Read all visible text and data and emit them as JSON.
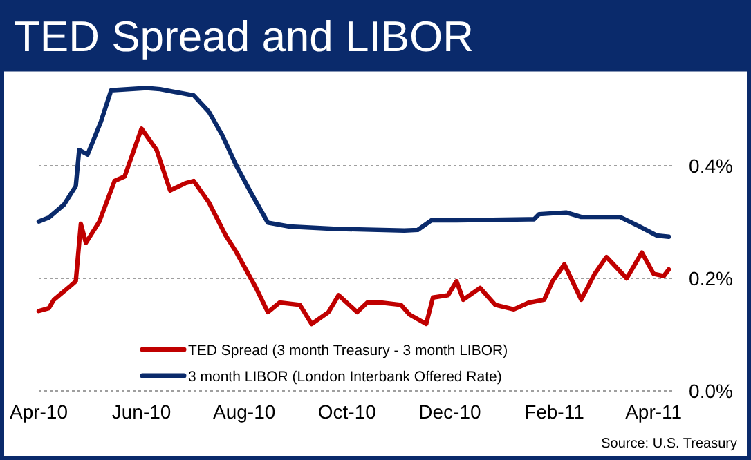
{
  "chart_data": {
    "type": "line",
    "title": "TED Spread and LIBOR",
    "xlim": [
      "2010-04-01",
      "2011-04-12"
    ],
    "xticks": [
      {
        "value": "2010-04-01",
        "label": "Apr-10"
      },
      {
        "value": "2010-06-01",
        "label": "Jun-10"
      },
      {
        "value": "2010-08-01",
        "label": "Aug-10"
      },
      {
        "value": "2010-10-01",
        "label": "Oct-10"
      },
      {
        "value": "2010-12-01",
        "label": "Dec-10"
      },
      {
        "value": "2011-02-01",
        "label": "Feb-11"
      },
      {
        "value": "2011-04-01",
        "label": "Apr-11"
      }
    ],
    "ylim": [
      0,
      0.57
    ],
    "yticks": [
      {
        "value": 0,
        "label": "0.0%"
      },
      {
        "value": 0.2,
        "label": "0.2%"
      },
      {
        "value": 0.4,
        "label": "0.4%"
      }
    ],
    "grid": "y",
    "legend": "bottom left",
    "marker": "none",
    "line_style": "solid",
    "annotations": [
      "Source: U.S. Treasury"
    ],
    "series": [
      {
        "name": "TED Spread (3 month Treasury - 3 month LIBOR)",
        "color": "#c00000",
        "x": [
          "2010-04-01",
          "2010-04-07",
          "2010-04-10",
          "2010-04-20",
          "2010-04-23",
          "2010-04-26",
          "2010-04-29",
          "2010-05-07",
          "2010-05-16",
          "2010-05-22",
          "2010-06-01",
          "2010-06-10",
          "2010-06-18",
          "2010-06-27",
          "2010-07-02",
          "2010-07-11",
          "2010-07-21",
          "2010-07-27",
          "2010-08-08",
          "2010-08-15",
          "2010-08-22",
          "2010-09-03",
          "2010-09-10",
          "2010-09-20",
          "2010-09-26",
          "2010-10-07",
          "2010-10-13",
          "2010-10-21",
          "2010-11-02",
          "2010-11-07",
          "2010-11-17",
          "2010-11-21",
          "2010-11-30",
          "2010-12-05",
          "2010-12-09",
          "2010-12-19",
          "2010-12-28",
          "2011-01-08",
          "2011-01-17",
          "2011-01-26",
          "2011-01-31",
          "2011-02-07",
          "2011-02-17",
          "2011-02-25",
          "2011-03-04",
          "2011-03-11",
          "2011-03-16",
          "2011-03-25",
          "2011-04-01",
          "2011-04-07",
          "2011-04-10"
        ],
        "values": [
          0.142,
          0.147,
          0.162,
          0.187,
          0.195,
          0.297,
          0.263,
          0.301,
          0.373,
          0.381,
          0.466,
          0.428,
          0.356,
          0.369,
          0.373,
          0.335,
          0.276,
          0.248,
          0.183,
          0.14,
          0.157,
          0.153,
          0.119,
          0.14,
          0.17,
          0.14,
          0.157,
          0.157,
          0.153,
          0.136,
          0.119,
          0.166,
          0.17,
          0.195,
          0.162,
          0.183,
          0.153,
          0.145,
          0.157,
          0.162,
          0.195,
          0.225,
          0.162,
          0.208,
          0.238,
          0.216,
          0.2,
          0.246,
          0.208,
          0.204,
          0.216
        ]
      },
      {
        "name": "3 month LIBOR (London Interbank Offered Rate)",
        "color": "#0a2a6b",
        "x": [
          "2010-04-01",
          "2010-04-07",
          "2010-04-16",
          "2010-04-23",
          "2010-04-25",
          "2010-04-30",
          "2010-05-08",
          "2010-05-14",
          "2010-06-04",
          "2010-06-12",
          "2010-07-02",
          "2010-07-11",
          "2010-07-19",
          "2010-07-27",
          "2010-08-05",
          "2010-08-15",
          "2010-08-28",
          "2010-09-23",
          "2010-11-04",
          "2010-11-12",
          "2010-11-20",
          "2010-12-05",
          "2011-01-20",
          "2011-01-23",
          "2011-02-08",
          "2011-02-17",
          "2011-03-12",
          "2011-03-23",
          "2011-04-03",
          "2011-04-10"
        ],
        "values": [
          0.301,
          0.308,
          0.331,
          0.364,
          0.428,
          0.42,
          0.479,
          0.534,
          0.538,
          0.536,
          0.525,
          0.496,
          0.454,
          0.402,
          0.352,
          0.299,
          0.292,
          0.288,
          0.285,
          0.286,
          0.303,
          0.303,
          0.305,
          0.314,
          0.317,
          0.309,
          0.309,
          0.293,
          0.276,
          0.274
        ]
      }
    ]
  }
}
